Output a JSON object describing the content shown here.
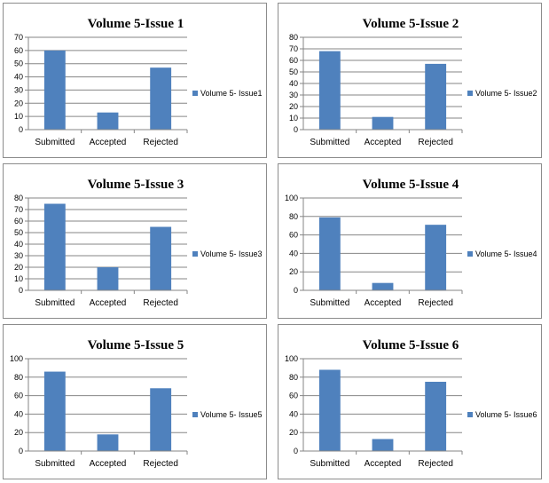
{
  "chart_data": [
    {
      "type": "bar",
      "title": "Volume 5-Issue 1",
      "categories": [
        "Submitted",
        "Accepted",
        "Rejected"
      ],
      "series": [
        {
          "name": "Volume 5- Issue1",
          "values": [
            60,
            13,
            47
          ]
        }
      ],
      "ylim": [
        0,
        70
      ],
      "yticks": [
        0,
        10,
        20,
        30,
        40,
        50,
        60,
        70
      ],
      "legend": "right",
      "grid": true,
      "bar_color": "#4f81bd"
    },
    {
      "type": "bar",
      "title": "Volume 5-Issue 2",
      "categories": [
        "Submitted",
        "Accepted",
        "Rejected"
      ],
      "series": [
        {
          "name": "Volume 5- Issue2",
          "values": [
            68,
            11,
            57
          ]
        }
      ],
      "ylim": [
        0,
        80
      ],
      "yticks": [
        0,
        10,
        20,
        30,
        40,
        50,
        60,
        70,
        80
      ],
      "legend": "right",
      "grid": true,
      "bar_color": "#4f81bd"
    },
    {
      "type": "bar",
      "title": "Volume 5-Issue 3",
      "categories": [
        "Submitted",
        "Accepted",
        "Rejected"
      ],
      "series": [
        {
          "name": "Volume 5- Issue3",
          "values": [
            75,
            20,
            55
          ]
        }
      ],
      "ylim": [
        0,
        80
      ],
      "yticks": [
        0,
        10,
        20,
        30,
        40,
        50,
        60,
        70,
        80
      ],
      "legend": "right",
      "grid": true,
      "bar_color": "#4f81bd"
    },
    {
      "type": "bar",
      "title": "Volume 5-Issue 4",
      "categories": [
        "Submitted",
        "Accepted",
        "Rejected"
      ],
      "series": [
        {
          "name": "Volume 5- Issue4",
          "values": [
            79,
            8,
            71
          ]
        }
      ],
      "ylim": [
        0,
        100
      ],
      "yticks": [
        0,
        20,
        40,
        60,
        80,
        100
      ],
      "legend": "right",
      "grid": true,
      "bar_color": "#4f81bd"
    },
    {
      "type": "bar",
      "title": "Volume 5-Issue 5",
      "categories": [
        "Submitted",
        "Accepted",
        "Rejected"
      ],
      "series": [
        {
          "name": "Volume 5- Issue5",
          "values": [
            86,
            18,
            68
          ]
        }
      ],
      "ylim": [
        0,
        100
      ],
      "yticks": [
        0,
        20,
        40,
        60,
        80,
        100
      ],
      "legend": "right",
      "grid": true,
      "bar_color": "#4f81bd"
    },
    {
      "type": "bar",
      "title": "Volume 5-Issue 6",
      "categories": [
        "Submitted",
        "Accepted",
        "Rejected"
      ],
      "series": [
        {
          "name": "Volume 5- Issue6",
          "values": [
            88,
            13,
            75
          ]
        }
      ],
      "ylim": [
        0,
        100
      ],
      "yticks": [
        0,
        20,
        40,
        60,
        80,
        100
      ],
      "legend": "right",
      "grid": true,
      "bar_color": "#4f81bd"
    }
  ]
}
